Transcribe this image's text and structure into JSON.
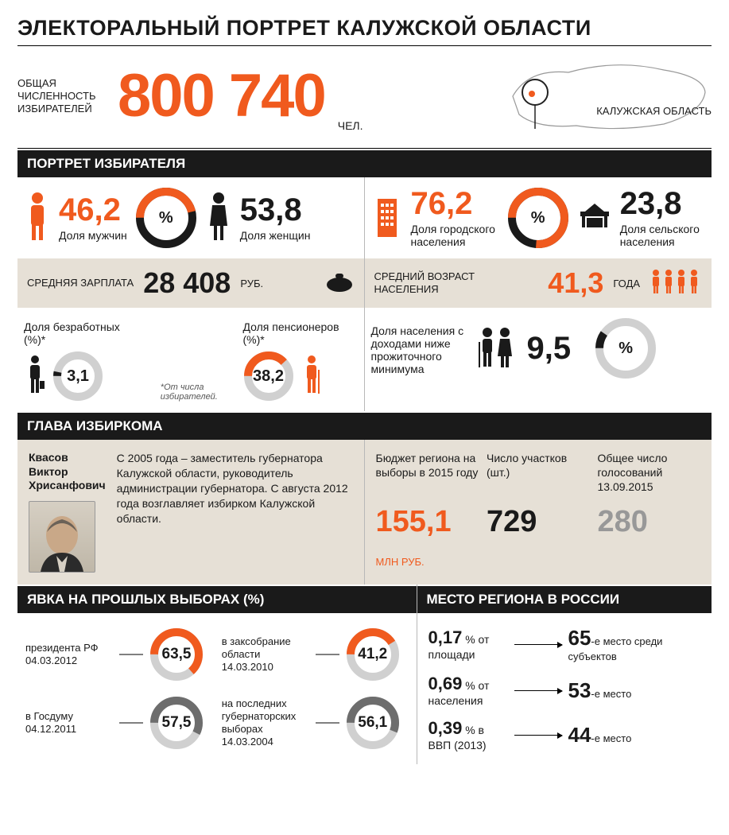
{
  "colors": {
    "accent": "#f05a1e",
    "black": "#1a1a1a",
    "grey": "#989898",
    "tan": "#e6e0d6",
    "divider": "#b8b8b8"
  },
  "title": "ЭЛЕКТОРАЛЬНЫЙ ПОРТРЕТ КАЛУЖСКОЙ ОБЛАСТИ",
  "header": {
    "label": "ОБЩАЯ ЧИСЛЕННОСТЬ ИЗБИРАТЕЛЕЙ",
    "value": "800 740",
    "unit": "ЧЕЛ.",
    "map_label": "КАЛУЖСКАЯ ОБЛАСТЬ"
  },
  "voter_portrait": {
    "section_title": "ПОРТРЕТ ИЗБИРАТЕЛЯ",
    "gender": {
      "male_value": "46,2",
      "male_label": "Доля мужчин",
      "female_value": "53,8",
      "female_label": "Доля женщин",
      "donut_percent": 46.2,
      "donut_colors": [
        "#f05a1e",
        "#1a1a1a"
      ],
      "center": "%"
    },
    "residence": {
      "urban_value": "76,2",
      "urban_label": "Доля городского населения",
      "rural_value": "23,8",
      "rural_label": "Доля сельского населения",
      "donut_percent": 76.2,
      "donut_colors": [
        "#f05a1e",
        "#1a1a1a"
      ],
      "center": "%"
    },
    "salary": {
      "label": "СРЕДНЯЯ ЗАРПЛАТА",
      "value": "28 408",
      "unit": "РУБ."
    },
    "age": {
      "label": "СРЕДНИЙ ВОЗРАСТ НАСЕЛЕНИЯ",
      "value": "41,3",
      "unit": "ГОДА"
    },
    "unemployed": {
      "label": "Доля безработных (%)*",
      "value": "3,1",
      "donut_percent": 3.1,
      "donut_colors": [
        "#1a1a1a",
        "#d0d0d0"
      ]
    },
    "pensioners": {
      "label": "Доля пенсионеров (%)*",
      "value": "38,2",
      "donut_percent": 38.2,
      "donut_colors": [
        "#f05a1e",
        "#d0d0d0"
      ]
    },
    "footnote": "*От числа избирателей.",
    "poverty": {
      "label": "Доля населения с доходами ниже прожиточного минимума",
      "value": "9,5",
      "donut_percent": 9.5,
      "donut_colors": [
        "#1a1a1a",
        "#d0d0d0"
      ],
      "center": "%"
    }
  },
  "commission_head": {
    "section_title": "ГЛАВА ИЗБИРКОМА",
    "name": "Квасов Виктор Хрисанфович",
    "bio": "С 2005 года – заместитель губернатора Калужской области, руководитель администрации губернатора. С августа 2012 года возглавляет избирком Калужской области.",
    "metrics": [
      {
        "label": "Бюджет региона на выборы в 2015 году",
        "value": "155,1",
        "unit": "МЛН РУБ.",
        "color": "orange"
      },
      {
        "label": "Число участков (шт.)",
        "value": "729",
        "unit": "",
        "color": "black"
      },
      {
        "label": "Общее число голосований 13.09.2015",
        "value": "280",
        "unit": "",
        "color": "grey"
      }
    ]
  },
  "turnout": {
    "section_title": "ЯВКА НА ПРОШЛЫХ ВЫБОРАХ (%)",
    "items": [
      {
        "label": "президента РФ 04.03.2012",
        "value": "63,5",
        "percent": 63.5,
        "colors": [
          "#f05a1e",
          "#d0d0d0"
        ]
      },
      {
        "label": "в заксобрание области 14.03.2010",
        "value": "41,2",
        "percent": 41.2,
        "colors": [
          "#f05a1e",
          "#d0d0d0"
        ]
      },
      {
        "label": "в Госдуму 04.12.2011",
        "value": "57,5",
        "percent": 57.5,
        "colors": [
          "#6d6d6d",
          "#d0d0d0"
        ]
      },
      {
        "label": "на последних губернаторских выборах 14.03.2004",
        "value": "56,1",
        "percent": 56.1,
        "colors": [
          "#6d6d6d",
          "#d0d0d0"
        ]
      }
    ]
  },
  "rank": {
    "section_title": "МЕСТО РЕГИОНА В РОССИИ",
    "rows": [
      {
        "pct": "0,17",
        "pct_label": "% от площади",
        "place": "65",
        "place_label": "-е место среди субъектов"
      },
      {
        "pct": "0,69",
        "pct_label": "% от населения",
        "place": "53",
        "place_label": "-е место"
      },
      {
        "pct": "0,39",
        "pct_label": "% в ВВП (2013)",
        "place": "44",
        "place_label": "-е место"
      }
    ]
  }
}
